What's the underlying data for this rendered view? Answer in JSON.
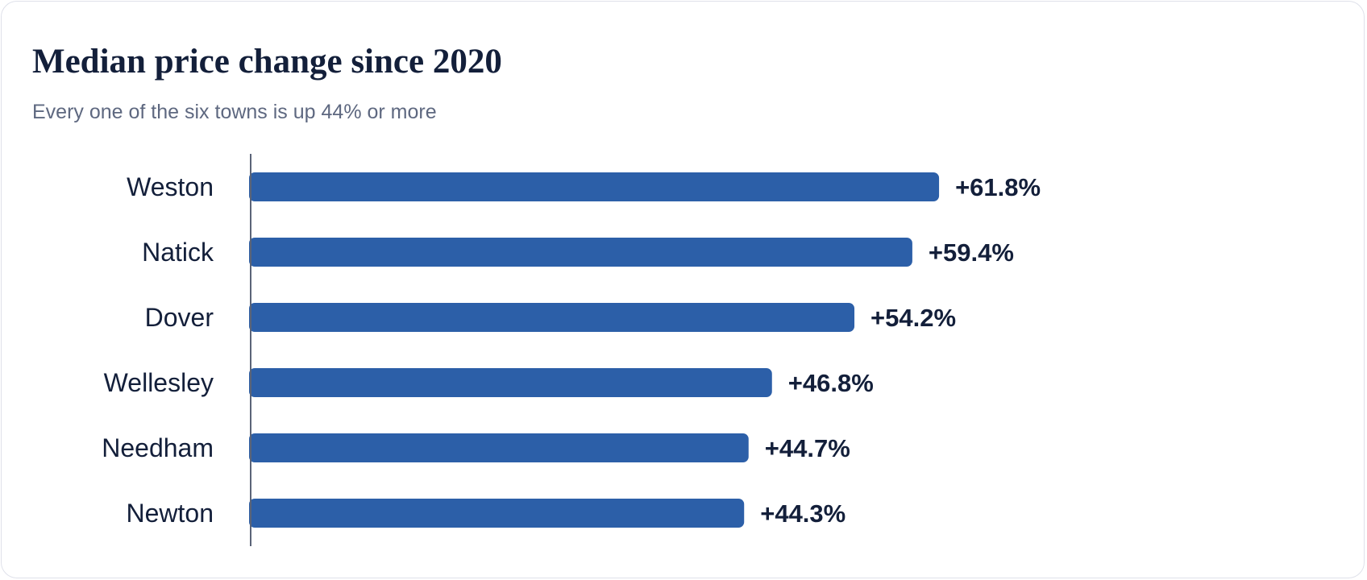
{
  "title": "Median price change since 2020",
  "subtitle": "Every one of the six towns is up 44% or more",
  "colors": {
    "bar": "#2c5fa8",
    "axis": "#5b6478",
    "text": "#131f3a",
    "subtitle": "#5e6880"
  },
  "chart_data": {
    "type": "bar",
    "orientation": "horizontal",
    "title": "Median price change since 2020",
    "subtitle": "Every one of the six towns is up 44% or more",
    "categories": [
      "Weston",
      "Natick",
      "Dover",
      "Wellesley",
      "Needham",
      "Newton"
    ],
    "values": [
      61.8,
      59.4,
      54.2,
      46.8,
      44.7,
      44.3
    ],
    "value_labels": [
      "+61.8%",
      "+59.4%",
      "+54.2%",
      "+46.8%",
      "+44.7%",
      "+44.3%"
    ],
    "unit": "%",
    "xlim": [
      0,
      100
    ],
    "grid": false,
    "legend": "none"
  }
}
